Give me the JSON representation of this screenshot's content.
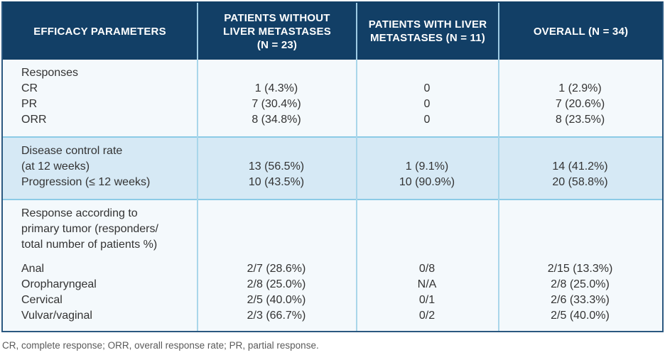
{
  "theme": {
    "header_bg": "#123f66",
    "header_text": "#ffffff",
    "header_divider": "#9ecbe4",
    "body_divider": "#a9d6ea",
    "section_separator": "#8ccbe6",
    "section_plain_bg": "#f4f9fc",
    "section_tint_bg": "#d6e9f5",
    "outer_border": "#2b5880",
    "body_text": "#333333",
    "footnote_text": "#5a5a5a"
  },
  "table": {
    "header": {
      "col1": "EFFICACY PARAMETERS",
      "col2": "PATIENTS WITHOUT\nLIVER METASTASES\n(N = 23)",
      "col3": "PATIENTS WITH LIVER\nMETASTASES (N = 11)",
      "col4": "OVERALL (N = 34)"
    },
    "sections": [
      {
        "tone": "plain",
        "rows": [
          [
            "Responses",
            "",
            "",
            ""
          ],
          [
            "CR",
            "1 (4.3%)",
            "0",
            "1 (2.9%)"
          ],
          [
            "PR",
            "7 (30.4%)",
            "0",
            "7 (20.6%)"
          ],
          [
            "ORR",
            "8 (34.8%)",
            "0",
            "8 (23.5%)"
          ]
        ]
      },
      {
        "tone": "tint",
        "rows": [
          [
            "Disease control rate",
            "",
            "",
            ""
          ],
          [
            "(at 12 weeks)",
            "13 (56.5%)",
            "1 (9.1%)",
            "14 (41.2%)"
          ],
          [
            "Progression (≤ 12 weeks)",
            "10 (43.5%)",
            "10 (90.9%)",
            "20 (58.8%)"
          ]
        ]
      },
      {
        "tone": "plain",
        "rows": [
          [
            "Response according to",
            "",
            "",
            ""
          ],
          [
            "primary tumor (responders/",
            "",
            "",
            ""
          ],
          [
            "total number of patients %)",
            "",
            "",
            ""
          ]
        ],
        "rows_after_gap": [
          [
            "Anal",
            "2/7 (28.6%)",
            "0/8",
            "2/15 (13.3%)"
          ],
          [
            "Oropharyngeal",
            "2/8 (25.0%)",
            "N/A",
            "2/8 (25.0%)"
          ],
          [
            "Cervical",
            "2/5 (40.0%)",
            "0/1",
            "2/6 (33.3%)"
          ],
          [
            "Vulvar/vaginal",
            "2/3 (66.7%)",
            "0/2",
            "2/5 (40.0%)"
          ]
        ]
      }
    ]
  },
  "footnote": "CR, complete response; ORR, overall response rate; PR, partial response.",
  "chart_data": {
    "type": "table",
    "title": "Efficacy parameters by liver metastases status",
    "columns": [
      "EFFICACY PARAMETERS",
      "PATIENTS WITHOUT LIVER METASTASES (N = 23)",
      "PATIENTS WITH LIVER METASTASES (N = 11)",
      "OVERALL (N = 34)"
    ],
    "rows": [
      [
        "Responses",
        "",
        "",
        ""
      ],
      [
        "CR",
        "1 (4.3%)",
        "0",
        "1 (2.9%)"
      ],
      [
        "PR",
        "7 (30.4%)",
        "0",
        "7 (20.6%)"
      ],
      [
        "ORR",
        "8 (34.8%)",
        "0",
        "8 (23.5%)"
      ],
      [
        "Disease control rate (at 12 weeks)",
        "13 (56.5%)",
        "1 (9.1%)",
        "14 (41.2%)"
      ],
      [
        "Progression (≤ 12 weeks)",
        "10 (43.5%)",
        "10 (90.9%)",
        "20 (58.8%)"
      ],
      [
        "Response according to primary tumor (responders/total number of patients %)",
        "",
        "",
        ""
      ],
      [
        "Anal",
        "2/7 (28.6%)",
        "0/8",
        "2/15 (13.3%)"
      ],
      [
        "Oropharyngeal",
        "2/8 (25.0%)",
        "N/A",
        "2/8 (25.0%)"
      ],
      [
        "Cervical",
        "2/5 (40.0%)",
        "0/1",
        "2/6 (33.3%)"
      ],
      [
        "Vulvar/vaginal",
        "2/3 (66.7%)",
        "0/2",
        "2/5 (40.0%)"
      ]
    ],
    "footnote": "CR, complete response; ORR, overall response rate; PR, partial response.",
    "legend_position": "none",
    "grid": "cell-borders"
  }
}
